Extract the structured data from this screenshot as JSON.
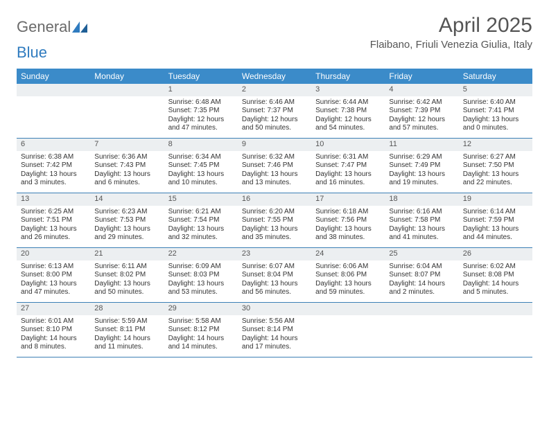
{
  "logo": {
    "part1": "General",
    "part2": "Blue"
  },
  "title": "April 2025",
  "location": "Flaibano, Friuli Venezia Giulia, Italy",
  "colors": {
    "header_bg": "#3b8bc9",
    "header_text": "#ffffff",
    "daynum_bg": "#eceff1",
    "week_border": "#3b7fb5",
    "logo_gray": "#6a6a6a",
    "logo_blue": "#2f7bbf",
    "text": "#333333"
  },
  "weekdays": [
    "Sunday",
    "Monday",
    "Tuesday",
    "Wednesday",
    "Thursday",
    "Friday",
    "Saturday"
  ],
  "weeks": [
    [
      {
        "n": "",
        "sunrise": "",
        "sunset": "",
        "daylight": ""
      },
      {
        "n": "",
        "sunrise": "",
        "sunset": "",
        "daylight": ""
      },
      {
        "n": "1",
        "sunrise": "Sunrise: 6:48 AM",
        "sunset": "Sunset: 7:35 PM",
        "daylight": "Daylight: 12 hours and 47 minutes."
      },
      {
        "n": "2",
        "sunrise": "Sunrise: 6:46 AM",
        "sunset": "Sunset: 7:37 PM",
        "daylight": "Daylight: 12 hours and 50 minutes."
      },
      {
        "n": "3",
        "sunrise": "Sunrise: 6:44 AM",
        "sunset": "Sunset: 7:38 PM",
        "daylight": "Daylight: 12 hours and 54 minutes."
      },
      {
        "n": "4",
        "sunrise": "Sunrise: 6:42 AM",
        "sunset": "Sunset: 7:39 PM",
        "daylight": "Daylight: 12 hours and 57 minutes."
      },
      {
        "n": "5",
        "sunrise": "Sunrise: 6:40 AM",
        "sunset": "Sunset: 7:41 PM",
        "daylight": "Daylight: 13 hours and 0 minutes."
      }
    ],
    [
      {
        "n": "6",
        "sunrise": "Sunrise: 6:38 AM",
        "sunset": "Sunset: 7:42 PM",
        "daylight": "Daylight: 13 hours and 3 minutes."
      },
      {
        "n": "7",
        "sunrise": "Sunrise: 6:36 AM",
        "sunset": "Sunset: 7:43 PM",
        "daylight": "Daylight: 13 hours and 6 minutes."
      },
      {
        "n": "8",
        "sunrise": "Sunrise: 6:34 AM",
        "sunset": "Sunset: 7:45 PM",
        "daylight": "Daylight: 13 hours and 10 minutes."
      },
      {
        "n": "9",
        "sunrise": "Sunrise: 6:32 AM",
        "sunset": "Sunset: 7:46 PM",
        "daylight": "Daylight: 13 hours and 13 minutes."
      },
      {
        "n": "10",
        "sunrise": "Sunrise: 6:31 AM",
        "sunset": "Sunset: 7:47 PM",
        "daylight": "Daylight: 13 hours and 16 minutes."
      },
      {
        "n": "11",
        "sunrise": "Sunrise: 6:29 AM",
        "sunset": "Sunset: 7:49 PM",
        "daylight": "Daylight: 13 hours and 19 minutes."
      },
      {
        "n": "12",
        "sunrise": "Sunrise: 6:27 AM",
        "sunset": "Sunset: 7:50 PM",
        "daylight": "Daylight: 13 hours and 22 minutes."
      }
    ],
    [
      {
        "n": "13",
        "sunrise": "Sunrise: 6:25 AM",
        "sunset": "Sunset: 7:51 PM",
        "daylight": "Daylight: 13 hours and 26 minutes."
      },
      {
        "n": "14",
        "sunrise": "Sunrise: 6:23 AM",
        "sunset": "Sunset: 7:53 PM",
        "daylight": "Daylight: 13 hours and 29 minutes."
      },
      {
        "n": "15",
        "sunrise": "Sunrise: 6:21 AM",
        "sunset": "Sunset: 7:54 PM",
        "daylight": "Daylight: 13 hours and 32 minutes."
      },
      {
        "n": "16",
        "sunrise": "Sunrise: 6:20 AM",
        "sunset": "Sunset: 7:55 PM",
        "daylight": "Daylight: 13 hours and 35 minutes."
      },
      {
        "n": "17",
        "sunrise": "Sunrise: 6:18 AM",
        "sunset": "Sunset: 7:56 PM",
        "daylight": "Daylight: 13 hours and 38 minutes."
      },
      {
        "n": "18",
        "sunrise": "Sunrise: 6:16 AM",
        "sunset": "Sunset: 7:58 PM",
        "daylight": "Daylight: 13 hours and 41 minutes."
      },
      {
        "n": "19",
        "sunrise": "Sunrise: 6:14 AM",
        "sunset": "Sunset: 7:59 PM",
        "daylight": "Daylight: 13 hours and 44 minutes."
      }
    ],
    [
      {
        "n": "20",
        "sunrise": "Sunrise: 6:13 AM",
        "sunset": "Sunset: 8:00 PM",
        "daylight": "Daylight: 13 hours and 47 minutes."
      },
      {
        "n": "21",
        "sunrise": "Sunrise: 6:11 AM",
        "sunset": "Sunset: 8:02 PM",
        "daylight": "Daylight: 13 hours and 50 minutes."
      },
      {
        "n": "22",
        "sunrise": "Sunrise: 6:09 AM",
        "sunset": "Sunset: 8:03 PM",
        "daylight": "Daylight: 13 hours and 53 minutes."
      },
      {
        "n": "23",
        "sunrise": "Sunrise: 6:07 AM",
        "sunset": "Sunset: 8:04 PM",
        "daylight": "Daylight: 13 hours and 56 minutes."
      },
      {
        "n": "24",
        "sunrise": "Sunrise: 6:06 AM",
        "sunset": "Sunset: 8:06 PM",
        "daylight": "Daylight: 13 hours and 59 minutes."
      },
      {
        "n": "25",
        "sunrise": "Sunrise: 6:04 AM",
        "sunset": "Sunset: 8:07 PM",
        "daylight": "Daylight: 14 hours and 2 minutes."
      },
      {
        "n": "26",
        "sunrise": "Sunrise: 6:02 AM",
        "sunset": "Sunset: 8:08 PM",
        "daylight": "Daylight: 14 hours and 5 minutes."
      }
    ],
    [
      {
        "n": "27",
        "sunrise": "Sunrise: 6:01 AM",
        "sunset": "Sunset: 8:10 PM",
        "daylight": "Daylight: 14 hours and 8 minutes."
      },
      {
        "n": "28",
        "sunrise": "Sunrise: 5:59 AM",
        "sunset": "Sunset: 8:11 PM",
        "daylight": "Daylight: 14 hours and 11 minutes."
      },
      {
        "n": "29",
        "sunrise": "Sunrise: 5:58 AM",
        "sunset": "Sunset: 8:12 PM",
        "daylight": "Daylight: 14 hours and 14 minutes."
      },
      {
        "n": "30",
        "sunrise": "Sunrise: 5:56 AM",
        "sunset": "Sunset: 8:14 PM",
        "daylight": "Daylight: 14 hours and 17 minutes."
      },
      {
        "n": "",
        "sunrise": "",
        "sunset": "",
        "daylight": ""
      },
      {
        "n": "",
        "sunrise": "",
        "sunset": "",
        "daylight": ""
      },
      {
        "n": "",
        "sunrise": "",
        "sunset": "",
        "daylight": ""
      }
    ]
  ]
}
